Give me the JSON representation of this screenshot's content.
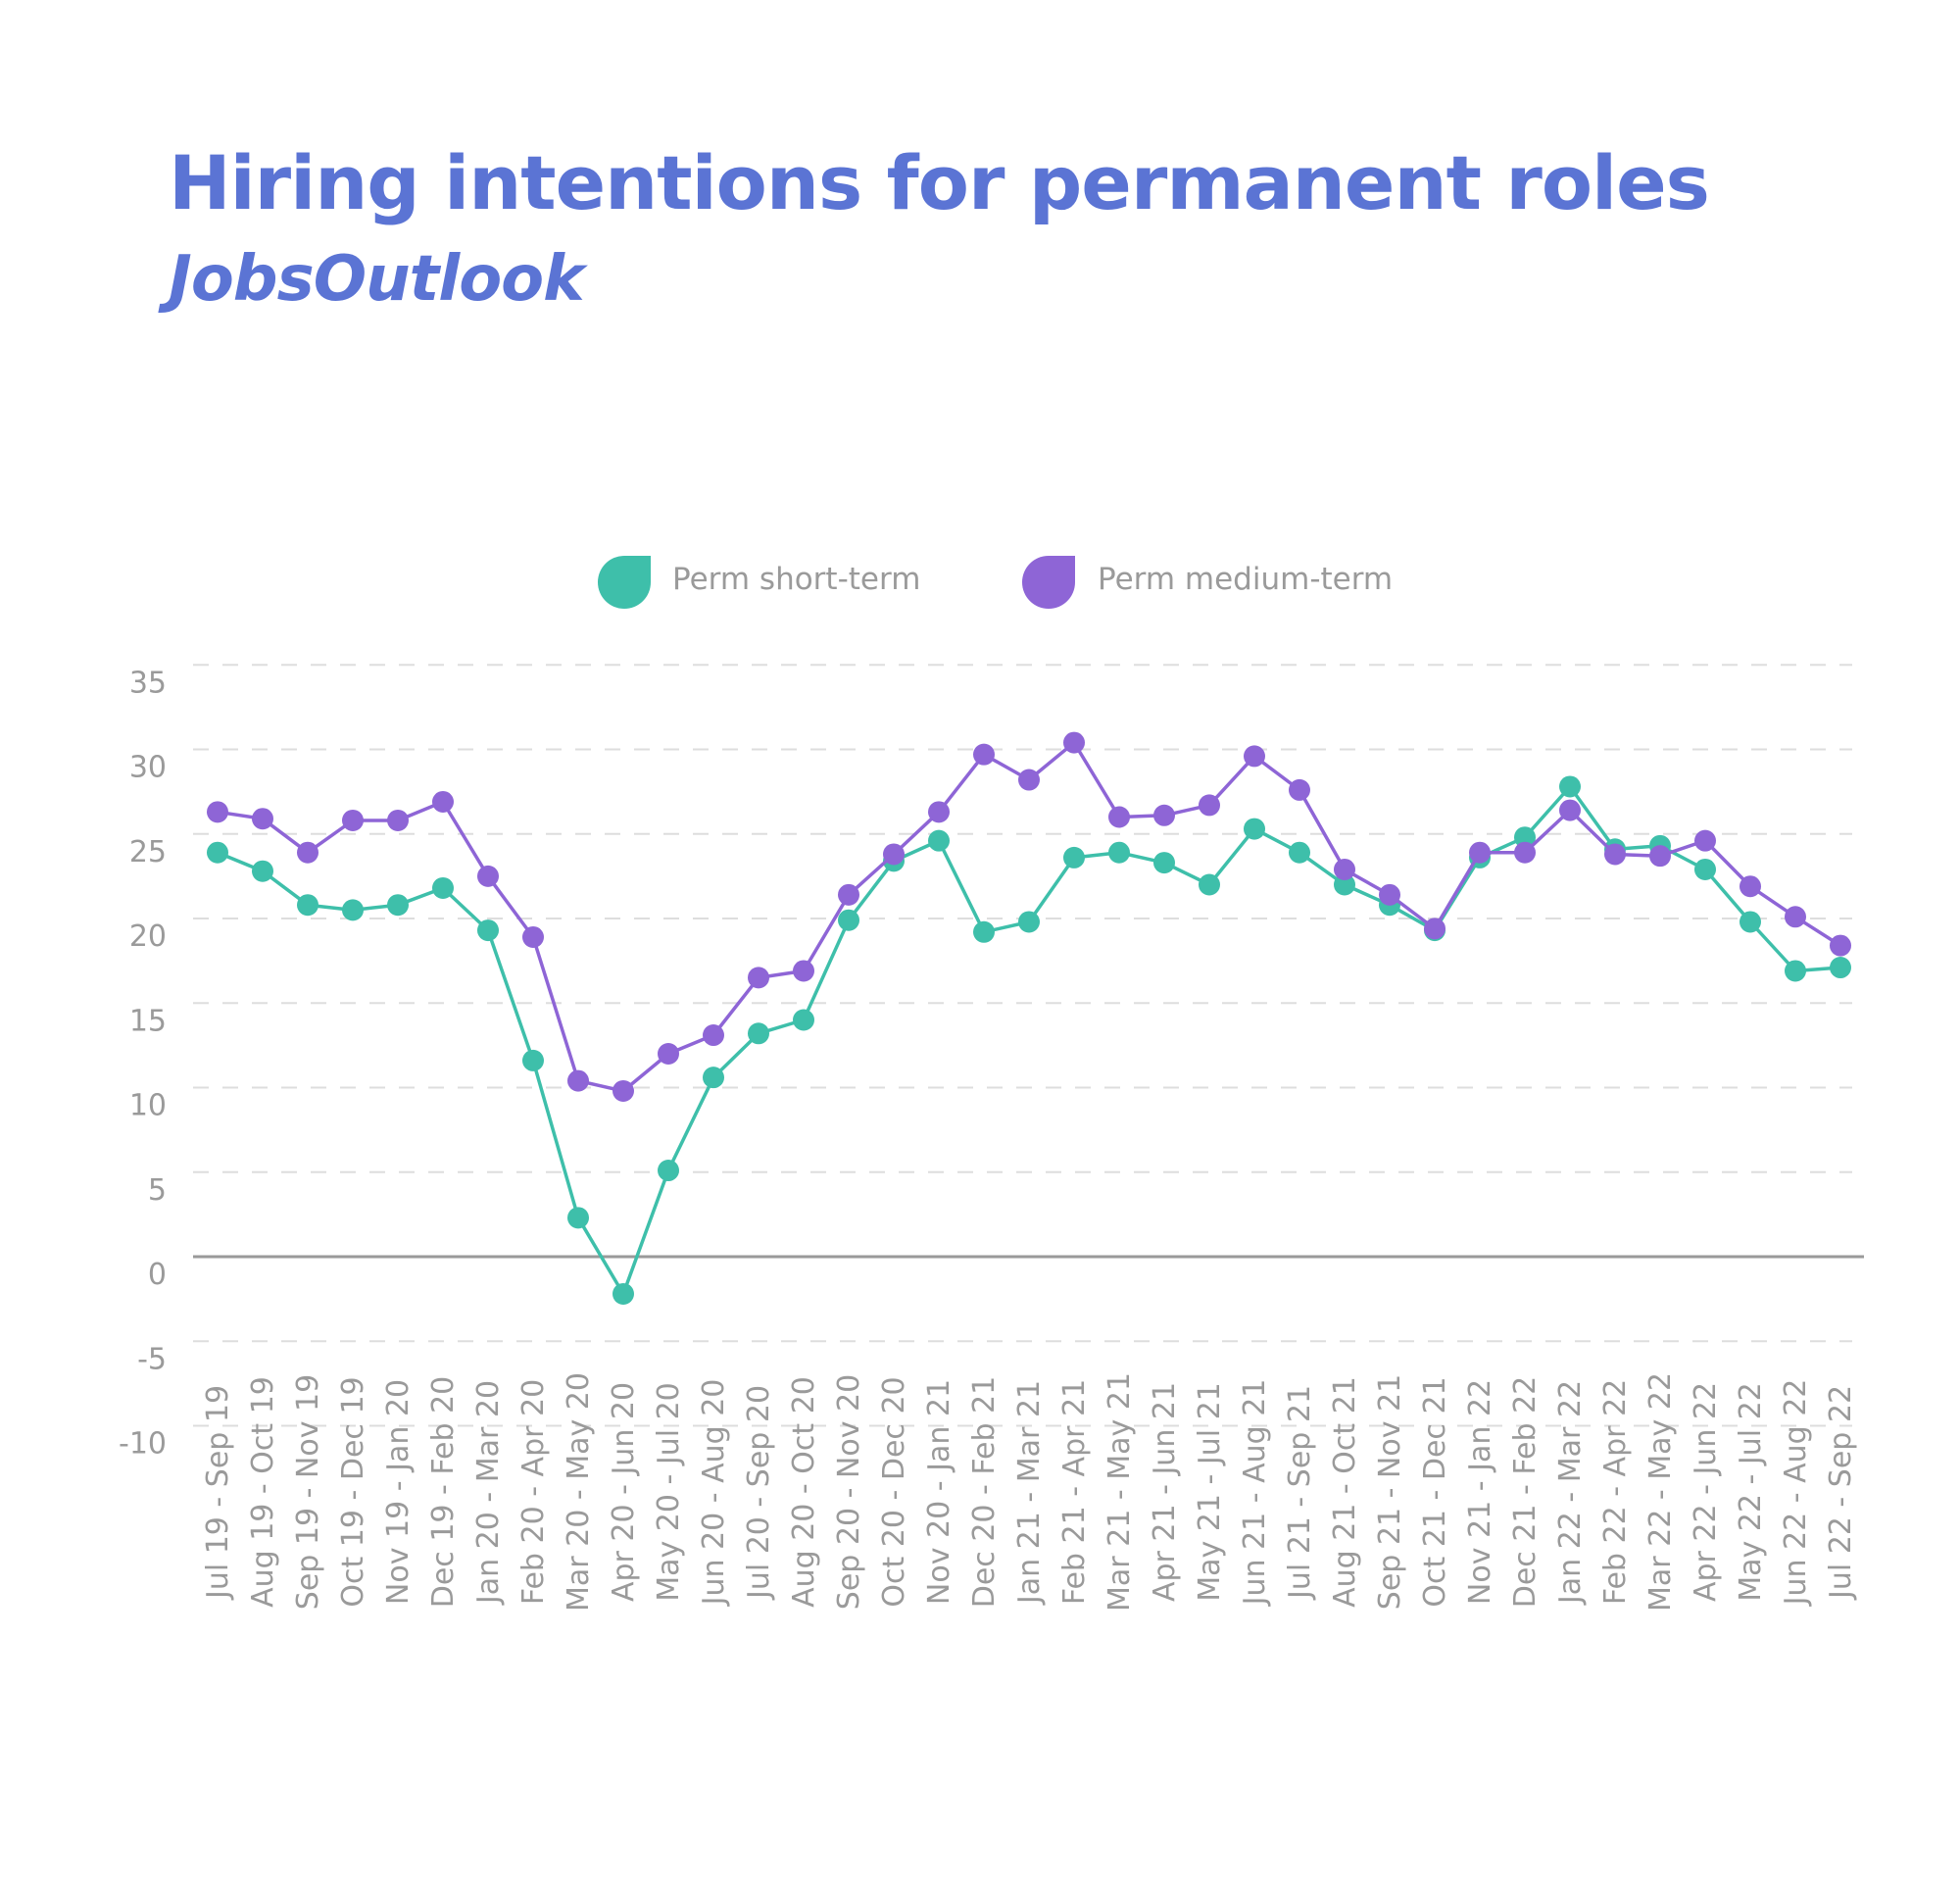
{
  "title": "Hiring intentions for permanent roles",
  "subtitle": "JobsOutlook",
  "chart_data": {
    "type": "line",
    "x": [
      "Jul 19 - Sep 19",
      "Aug 19 - Oct 19",
      "Sep 19 - Nov 19",
      "Oct 19 - Dec 19",
      "Nov 19 - Jan 20",
      "Dec 19 - Feb 20",
      "Jan 20 - Mar 20",
      "Feb 20 - Apr 20",
      "Mar 20 - May 20",
      "Apr 20 - Jun 20",
      "May 20 - Jul 20",
      "Jun 20 - Aug 20",
      "Jul 20 - Sep 20",
      "Aug 20 - Oct 20",
      "Sep 20 - Nov 20",
      "Oct 20 - Dec 20",
      "Nov 20 - Jan 21",
      "Dec 20 - Feb 21",
      "Jan 21 - Mar 21",
      "Feb 21 - Apr 21",
      "Mar 21 - May 21",
      "Apr 21 - Jun 21",
      "May 21 - Jul 21",
      "Jun 21 - Aug 21",
      "Jul 21 - Sep 21",
      "Aug 21 - Oct 21",
      "Sep 21 - Nov 21",
      "Oct 21 - Dec 21",
      "Nov 21 - Jan 22",
      "Dec 21 - Feb 22",
      "Jan 22 - Mar 22",
      "Feb 22 - Apr 22",
      "Mar 22 - May 22",
      "Apr 22 - Jun 22",
      "May 22 - Jul 22",
      "Jun 22 - Aug 22",
      "Jul 22 - Sep 22"
    ],
    "series": [
      {
        "name": "Perm short-term",
        "color": "#3EBFAA",
        "values": [
          23.9,
          22.8,
          20.8,
          20.5,
          20.8,
          21.8,
          19.3,
          11.6,
          2.3,
          -2.2,
          5.1,
          10.6,
          13.2,
          14.0,
          19.9,
          23.4,
          24.6,
          19.2,
          19.8,
          23.6,
          23.9,
          23.3,
          22.0,
          25.3,
          23.9,
          22.0,
          20.8,
          19.3,
          23.6,
          24.8,
          27.8,
          24.1,
          24.3,
          22.9,
          19.8,
          16.9,
          17.1
        ]
      },
      {
        "name": "Perm medium-term",
        "color": "#8E65D6",
        "values": [
          26.3,
          25.9,
          23.9,
          25.8,
          25.8,
          26.9,
          22.5,
          18.9,
          10.4,
          9.8,
          12.0,
          13.1,
          16.5,
          16.9,
          21.4,
          23.8,
          26.3,
          29.7,
          28.2,
          30.4,
          26.0,
          26.1,
          26.7,
          29.6,
          27.6,
          22.9,
          21.4,
          19.4,
          23.9,
          23.9,
          26.4,
          23.8,
          23.7,
          24.6,
          21.9,
          20.1,
          18.4
        ]
      }
    ],
    "ylim": [
      -10,
      35
    ],
    "yticks": [
      35,
      30,
      25,
      20,
      15,
      10,
      5,
      0,
      -5,
      -10
    ],
    "grid": true,
    "legend": "top-center",
    "xlabel": "",
    "ylabel": ""
  }
}
